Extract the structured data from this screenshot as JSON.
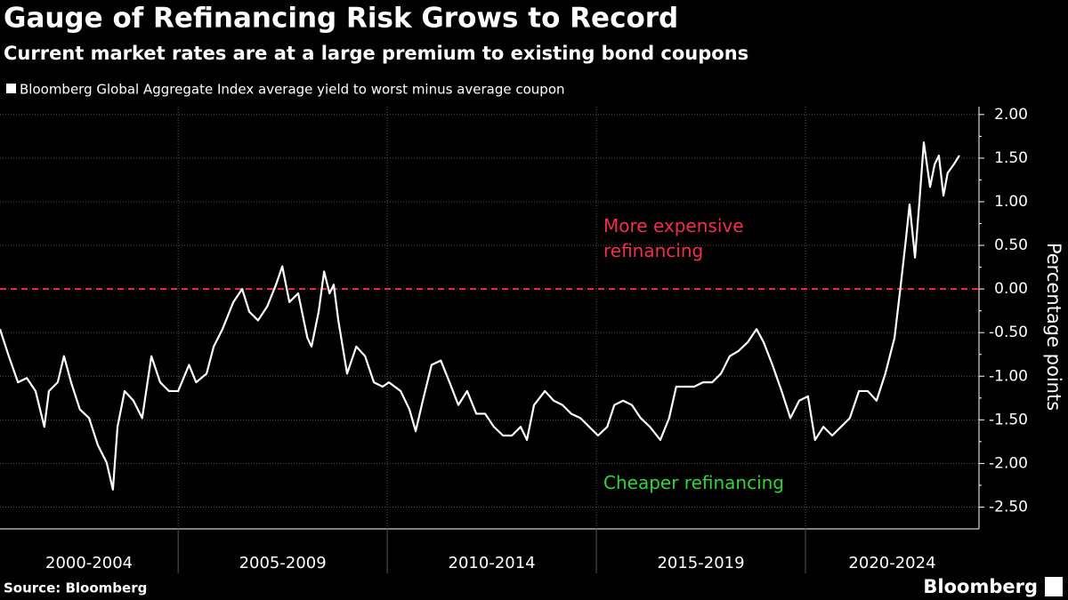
{
  "chart_data": {
    "type": "line",
    "title": "Gauge of Refinancing Risk Grows to Record",
    "subtitle": "Current market rates are at a large premium to existing bond coupons",
    "source": "Source: Bloomberg",
    "brand": "Bloomberg",
    "y_axis_label": "Percentage points",
    "grid": true,
    "periods": [
      "2000-2004",
      "2005-2009",
      "2010-2014",
      "2015-2019",
      "2020-2024"
    ],
    "xlim": [
      2000.74,
      2024.15
    ],
    "xticks": [
      2005,
      2010,
      2015,
      2020
    ],
    "ylim": [
      -2.75,
      2.09
    ],
    "yticks": [
      {
        "value": 2,
        "label": "2.00"
      },
      {
        "value": 1.5,
        "label": "1.50"
      },
      {
        "value": 1,
        "label": "1.00"
      },
      {
        "value": 0.5,
        "label": "0.50"
      },
      {
        "value": 0,
        "label": "0.00"
      },
      {
        "value": -0.5,
        "label": "-0.50"
      },
      {
        "value": -1,
        "label": "-1.00"
      },
      {
        "value": -1.5,
        "label": "-1.50"
      },
      {
        "value": -2,
        "label": "-2.00"
      },
      {
        "value": -2.5,
        "label": "-2.50"
      }
    ],
    "reference_line": {
      "value": 0,
      "color": "#e8304a"
    },
    "annotations": [
      {
        "text": "More expensive\nrefinancing",
        "color": "#f0304e"
      },
      {
        "text": "Cheaper refinancing",
        "color": "#33d43a"
      }
    ],
    "x": [
      2000.74,
      2000.95,
      2001.17,
      2001.38,
      2001.59,
      2001.8,
      2001.91,
      2002.12,
      2002.27,
      2002.44,
      2002.65,
      2002.87,
      2003.08,
      2003.29,
      2003.44,
      2003.55,
      2003.72,
      2003.93,
      2004.14,
      2004.36,
      2004.57,
      2004.78,
      2005.0,
      2005.26,
      2005.43,
      2005.68,
      2005.85,
      2006.06,
      2006.32,
      2006.53,
      2006.7,
      2006.91,
      2007.13,
      2007.34,
      2007.49,
      2007.66,
      2007.87,
      2008.09,
      2008.19,
      2008.36,
      2008.49,
      2008.62,
      2008.72,
      2008.83,
      2009.04,
      2009.26,
      2009.47,
      2009.68,
      2009.89,
      2010.04,
      2010.32,
      2010.53,
      2010.68,
      2010.85,
      2011.06,
      2011.28,
      2011.49,
      2011.7,
      2011.91,
      2012.13,
      2012.34,
      2012.55,
      2012.77,
      2012.98,
      2013.19,
      2013.34,
      2013.51,
      2013.77,
      2013.98,
      2014.19,
      2014.4,
      2014.62,
      2014.83,
      2015.04,
      2015.26,
      2015.43,
      2015.64,
      2015.85,
      2016.06,
      2016.28,
      2016.53,
      2016.74,
      2016.91,
      2017.13,
      2017.34,
      2017.55,
      2017.77,
      2017.98,
      2018.19,
      2018.4,
      2018.62,
      2018.83,
      2019.0,
      2019.21,
      2019.43,
      2019.64,
      2019.85,
      2020.06,
      2020.23,
      2020.43,
      2020.64,
      2020.85,
      2021.06,
      2021.28,
      2021.49,
      2021.7,
      2021.91,
      2022.13,
      2022.28,
      2022.4,
      2022.49,
      2022.62,
      2022.72,
      2022.83,
      2022.98,
      2023.09,
      2023.19,
      2023.3,
      2023.4,
      2023.55,
      2023.68
    ],
    "series": [
      {
        "name": "Bloomberg Global Aggregate Index average yield to worst minus average coupon",
        "color": "#ffffff",
        "values": [
          -0.46,
          -0.77,
          -1.07,
          -1.02,
          -1.17,
          -1.58,
          -1.17,
          -1.07,
          -0.77,
          -1.07,
          -1.38,
          -1.48,
          -1.79,
          -1.99,
          -2.3,
          -1.58,
          -1.17,
          -1.28,
          -1.48,
          -0.77,
          -1.07,
          -1.17,
          -1.17,
          -0.87,
          -1.07,
          -0.97,
          -0.66,
          -0.46,
          -0.15,
          0,
          -0.26,
          -0.36,
          -0.2,
          0.05,
          0.26,
          -0.15,
          -0.05,
          -0.56,
          -0.66,
          -0.26,
          0.2,
          -0.05,
          0.05,
          -0.36,
          -0.97,
          -0.66,
          -0.77,
          -1.07,
          -1.12,
          -1.07,
          -1.17,
          -1.38,
          -1.63,
          -1.28,
          -0.87,
          -0.82,
          -1.07,
          -1.33,
          -1.17,
          -1.43,
          -1.43,
          -1.58,
          -1.68,
          -1.68,
          -1.58,
          -1.73,
          -1.33,
          -1.17,
          -1.28,
          -1.33,
          -1.43,
          -1.48,
          -1.58,
          -1.68,
          -1.58,
          -1.33,
          -1.28,
          -1.33,
          -1.48,
          -1.58,
          -1.73,
          -1.48,
          -1.12,
          -1.12,
          -1.12,
          -1.07,
          -1.07,
          -0.97,
          -0.77,
          -0.71,
          -0.61,
          -0.46,
          -0.61,
          -0.87,
          -1.17,
          -1.48,
          -1.28,
          -1.23,
          -1.73,
          -1.58,
          -1.68,
          -1.58,
          -1.48,
          -1.17,
          -1.17,
          -1.28,
          -0.97,
          -0.56,
          0.05,
          0.56,
          0.97,
          0.36,
          0.97,
          1.68,
          1.17,
          1.43,
          1.53,
          1.07,
          1.33,
          1.43,
          1.53
        ]
      }
    ]
  }
}
